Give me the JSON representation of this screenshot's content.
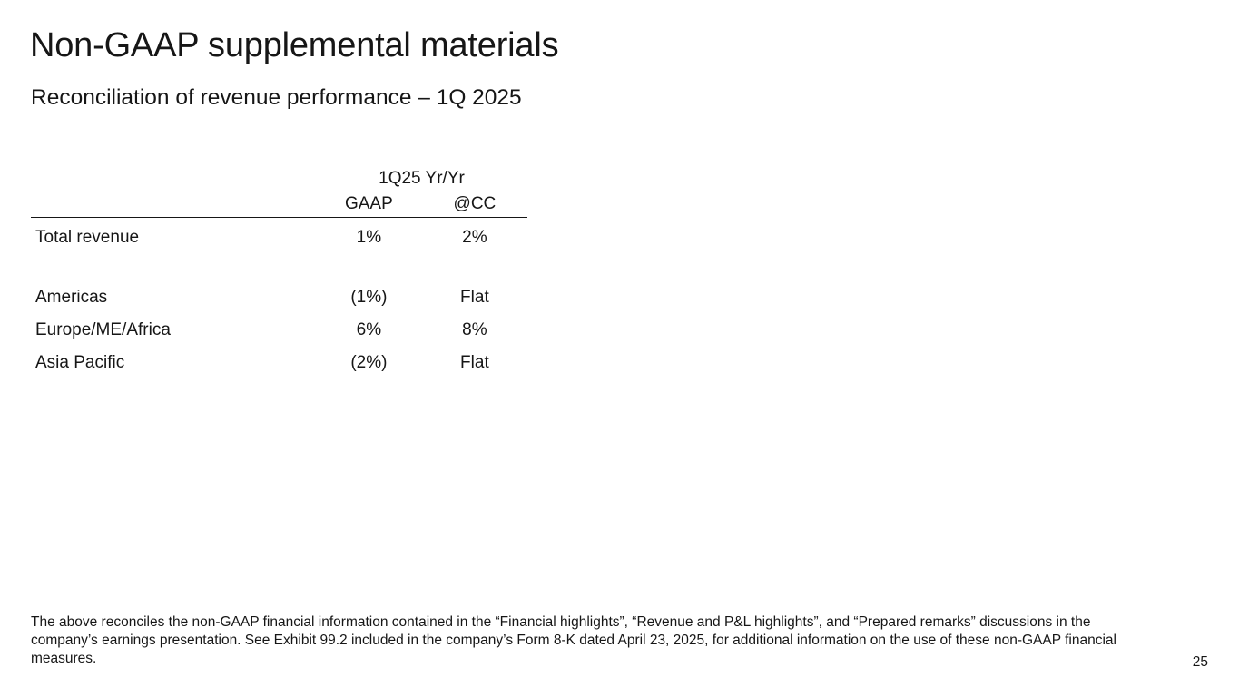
{
  "slide": {
    "title": "Non-GAAP supplemental materials",
    "subtitle": "Reconciliation of revenue performance – 1Q 2025",
    "page_number": "25"
  },
  "table": {
    "group_header": "1Q25 Yr/Yr",
    "columns": [
      "GAAP",
      "@CC"
    ],
    "total_row": {
      "label": "Total revenue",
      "gaap": "1%",
      "cc": "2%"
    },
    "geo_rows": [
      {
        "label": "Americas",
        "gaap": "(1%)",
        "cc": "Flat"
      },
      {
        "label": "Europe/ME/Africa",
        "gaap": "6%",
        "cc": "8%"
      },
      {
        "label": "Asia Pacific",
        "gaap": "(2%)",
        "cc": "Flat"
      }
    ]
  },
  "footnote": "The above reconciles the non-GAAP financial information contained in the “Financial highlights”, “Revenue and P&L highlights”, and “Prepared remarks” discussions in the company’s earnings presentation. See Exhibit 99.2 included in the company’s Form 8-K dated April 23, 2025, for additional information on the use of these non-GAAP financial measures."
}
